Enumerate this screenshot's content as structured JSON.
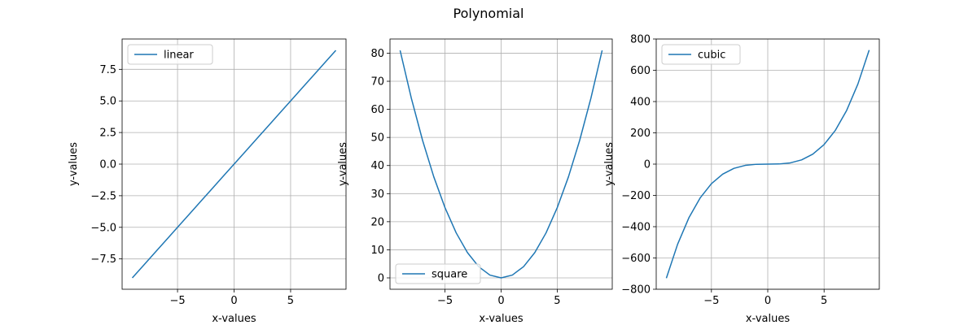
{
  "figure": {
    "title": "Polynomial"
  },
  "chart_data": [
    {
      "type": "line",
      "name": "linear-panel",
      "xlabel": "x-values",
      "ylabel": "y-values",
      "xlim": [
        -9.9,
        9.9
      ],
      "ylim": [
        -9.9,
        9.9
      ],
      "xticks": [
        -5,
        0,
        5
      ],
      "xtick_labels": [
        "−5",
        "0",
        "5"
      ],
      "yticks": [
        -7.5,
        -5.0,
        -2.5,
        0.0,
        2.5,
        5.0,
        7.5
      ],
      "ytick_labels": [
        "−7.5",
        "−5.0",
        "−2.5",
        "0.0",
        "2.5",
        "5.0",
        "7.5"
      ],
      "grid": true,
      "legend": "top-left",
      "series": [
        {
          "name": "linear",
          "color": "#1f77b4",
          "x": [
            -9,
            -8,
            -7,
            -6,
            -5,
            -4,
            -3,
            -2,
            -1,
            0,
            1,
            2,
            3,
            4,
            5,
            6,
            7,
            8,
            9
          ],
          "y": [
            -9,
            -8,
            -7,
            -6,
            -5,
            -4,
            -3,
            -2,
            -1,
            0,
            1,
            2,
            3,
            4,
            5,
            6,
            7,
            8,
            9
          ]
        }
      ]
    },
    {
      "type": "line",
      "name": "square-panel",
      "xlabel": "x-values",
      "ylabel": "y-values",
      "xlim": [
        -9.9,
        9.9
      ],
      "ylim": [
        -4.05,
        85.05
      ],
      "xticks": [
        -5,
        0,
        5
      ],
      "xtick_labels": [
        "−5",
        "0",
        "5"
      ],
      "yticks": [
        0,
        10,
        20,
        30,
        40,
        50,
        60,
        70,
        80
      ],
      "ytick_labels": [
        "0",
        "10",
        "20",
        "30",
        "40",
        "50",
        "60",
        "70",
        "80"
      ],
      "grid": true,
      "legend": "bottom-left",
      "series": [
        {
          "name": "square",
          "color": "#1f77b4",
          "x": [
            -9,
            -8,
            -7,
            -6,
            -5,
            -4,
            -3,
            -2,
            -1,
            0,
            1,
            2,
            3,
            4,
            5,
            6,
            7,
            8,
            9
          ],
          "y": [
            81,
            64,
            49,
            36,
            25,
            16,
            9,
            4,
            1,
            0,
            1,
            4,
            9,
            16,
            25,
            36,
            49,
            64,
            81
          ]
        }
      ]
    },
    {
      "type": "line",
      "name": "cubic-panel",
      "xlabel": "x-values",
      "ylabel": "y-values",
      "xlim": [
        -9.9,
        9.9
      ],
      "ylim": [
        -800,
        800
      ],
      "xticks": [
        -5,
        0,
        5
      ],
      "xtick_labels": [
        "−5",
        "0",
        "5"
      ],
      "yticks": [
        -800,
        -600,
        -400,
        -200,
        0,
        200,
        400,
        600,
        800
      ],
      "ytick_labels": [
        "−800",
        "−600",
        "−400",
        "−200",
        "0",
        "200",
        "400",
        "600",
        "800"
      ],
      "grid": true,
      "legend": "top-left",
      "series": [
        {
          "name": "cubic",
          "color": "#1f77b4",
          "x": [
            -9,
            -8,
            -7,
            -6,
            -5,
            -4,
            -3,
            -2,
            -1,
            0,
            1,
            2,
            3,
            4,
            5,
            6,
            7,
            8,
            9
          ],
          "y": [
            -729,
            -512,
            -343,
            -216,
            -125,
            -64,
            -27,
            -8,
            -1,
            0,
            1,
            8,
            27,
            64,
            125,
            216,
            343,
            512,
            729
          ]
        }
      ]
    }
  ]
}
